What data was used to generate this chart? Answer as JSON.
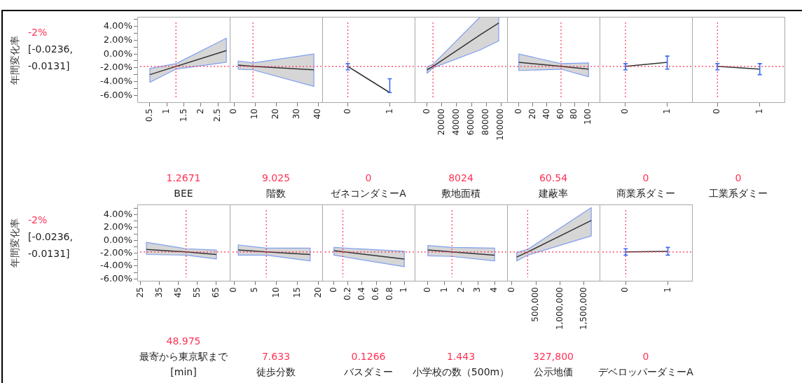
{
  "chart_data": [
    {
      "type": "line",
      "ylabel": "年間変化率",
      "annotations": [
        "-2%",
        "[-0.0236, -0.0131]"
      ],
      "xlabel": "BEE",
      "x": [
        0.5,
        1.2671,
        2.75
      ],
      "series": [
        {
          "color": "#333333",
          "values": [
            -3.0,
            -1.8,
            0.5
          ],
          "lower": [
            -4.1,
            -2.2,
            -1.2
          ],
          "upper": [
            -2.1,
            -1.4,
            2.3
          ]
        }
      ],
      "xlim": [
        0.13,
        2.87
      ],
      "xticks": [
        0.5,
        1,
        1.5,
        2,
        2.5
      ],
      "ylim": [
        -7.1,
        5.4
      ],
      "yticks": [
        {
          "value": 5,
          "label": null
        },
        {
          "value": 4,
          "label": "4.00%"
        },
        {
          "value": 3,
          "label": null
        },
        {
          "value": 2,
          "label": "2.00%"
        },
        {
          "value": 1,
          "label": null
        },
        {
          "value": 0,
          "label": "0.00%"
        },
        {
          "value": -1,
          "label": null
        },
        {
          "value": -2,
          "label": "-2.00%"
        },
        {
          "value": -3,
          "label": null
        },
        {
          "value": -4,
          "label": "-4.00%"
        },
        {
          "value": -5,
          "label": null
        },
        {
          "value": -6,
          "label": "-6.00%"
        }
      ],
      "ref_lines": [
        {
          "axis": "x",
          "value": 1.2671,
          "label": "1.2671",
          "color": "#ff3355",
          "line_style": "dotted"
        },
        {
          "axis": "y",
          "value": -1.8,
          "color": "#ff3355",
          "line_style": "dotted"
        }
      ]
    },
    {
      "type": "line",
      "xlabel": "階数",
      "x": [
        2,
        9.025,
        38
      ],
      "series": [
        {
          "color": "#333333",
          "values": [
            -1.6,
            -1.8,
            -2.3
          ],
          "lower": [
            -2.2,
            -2.3,
            -4.7
          ],
          "upper": [
            -1.0,
            -1.3,
            0.0
          ]
        }
      ],
      "xlim": [
        -2,
        42.3
      ],
      "xticks": [
        0,
        10,
        20,
        30,
        40
      ],
      "ylim": [
        -7.1,
        5.4
      ],
      "tick_labels": "x",
      "ref_lines": [
        {
          "axis": "x",
          "value": 9.025,
          "label": "9.025",
          "color": "#ff3355",
          "line_style": "dotted"
        },
        {
          "axis": "y",
          "value": -1.8,
          "color": "#ff3355",
          "line_style": "dotted"
        }
      ]
    },
    {
      "type": "line",
      "xlabel": "ゼネコンダミーA",
      "x": [
        0,
        1
      ],
      "series": [
        {
          "color": "#333333",
          "values": [
            -1.8,
            -5.6
          ],
          "errors": [
            [
              -2.3,
              -1.4
            ],
            [
              -5.6,
              -3.6
            ]
          ]
        }
      ],
      "xlim": [
        -0.61,
        1.61
      ],
      "xticks": [
        0,
        1
      ],
      "ylim": [
        -7.1,
        5.4
      ],
      "tick_labels": "x",
      "ref_lines": [
        {
          "axis": "x",
          "value": 0,
          "label": "0",
          "color": "#ff3355",
          "line_style": "dotted"
        },
        {
          "axis": "y",
          "value": -1.8,
          "color": "#ff3355",
          "line_style": "dotted"
        }
      ]
    },
    {
      "type": "line",
      "xlabel": "敷地面積",
      "x": [
        0,
        8024,
        72000,
        97000
      ],
      "series": [
        {
          "color": "#333333",
          "values": [
            -2.3,
            -1.8,
            2.8,
            4.5
          ],
          "lower": [
            -2.8,
            -2.0,
            0.6,
            1.9
          ],
          "upper": [
            -1.9,
            -1.5,
            5.4,
            5.4
          ]
        }
      ],
      "xlim": [
        -16800,
        109300
      ],
      "xticks": [
        0,
        20000,
        40000,
        60000,
        80000,
        100000
      ],
      "ylim": [
        -7.1,
        5.4
      ],
      "tick_labels": "x",
      "ref_lines": [
        {
          "axis": "x",
          "value": 8024,
          "label": "8024",
          "color": "#ff3355",
          "line_style": "dotted"
        },
        {
          "axis": "y",
          "value": -1.8,
          "color": "#ff3355",
          "line_style": "dotted"
        }
      ]
    },
    {
      "type": "line",
      "xlabel": "建蔽率",
      "x": [
        0,
        60.54,
        100
      ],
      "series": [
        {
          "color": "#333333",
          "values": [
            -1.2,
            -1.8,
            -2.2
          ],
          "lower": [
            -2.4,
            -2.2,
            -3.3
          ],
          "upper": [
            0.0,
            -1.4,
            -1.3
          ]
        }
      ],
      "xlim": [
        -16.8,
        116.8
      ],
      "xticks": [
        0,
        20,
        40,
        60,
        80,
        100
      ],
      "ylim": [
        -7.1,
        5.4
      ],
      "tick_labels": "x",
      "ref_lines": [
        {
          "axis": "x",
          "value": 60.54,
          "label": "60.54",
          "color": "#ff3355",
          "line_style": "dotted"
        },
        {
          "axis": "y",
          "value": -1.8,
          "color": "#ff3355",
          "line_style": "dotted"
        }
      ]
    },
    {
      "type": "line",
      "xlabel": "商業系ダミー",
      "x": [
        0,
        1
      ],
      "series": [
        {
          "color": "#333333",
          "values": [
            -1.8,
            -1.2
          ],
          "errors": [
            [
              -2.3,
              -1.4
            ],
            [
              -2.2,
              -0.3
            ]
          ]
        }
      ],
      "xlim": [
        -0.62,
        1.61
      ],
      "xticks": [
        0,
        1
      ],
      "ylim": [
        -7.1,
        5.4
      ],
      "tick_labels": "x",
      "ref_lines": [
        {
          "axis": "x",
          "value": 0,
          "label": "0",
          "color": "#ff3355",
          "line_style": "dotted"
        },
        {
          "axis": "y",
          "value": -1.8,
          "color": "#ff3355",
          "line_style": "dotted"
        }
      ]
    },
    {
      "type": "line",
      "xlabel": "工業系ダミー",
      "x": [
        0,
        1
      ],
      "series": [
        {
          "color": "#333333",
          "values": [
            -1.8,
            -2.2
          ],
          "errors": [
            [
              -2.3,
              -1.4
            ],
            [
              -3.0,
              -1.4
            ]
          ]
        }
      ],
      "xlim": [
        -0.6,
        1.6
      ],
      "xticks": [
        0,
        1
      ],
      "ylim": [
        -7.1,
        5.4
      ],
      "tick_labels": "x",
      "ref_lines": [
        {
          "axis": "x",
          "value": 0,
          "label": "0",
          "color": "#ff3355",
          "line_style": "dotted"
        },
        {
          "axis": "y",
          "value": -1.8,
          "color": "#ff3355",
          "line_style": "dotted"
        }
      ]
    },
    {
      "type": "line",
      "ylabel": "年間変化率",
      "annotations": [
        "-2%",
        "[-0.0236, -0.0131]"
      ],
      "xlabel": "最寄から東京駅まで[min]",
      "x": [
        28,
        48.975,
        65
      ],
      "series": [
        {
          "color": "#333333",
          "values": [
            -1.4,
            -1.8,
            -2.2
          ],
          "lower": [
            -2.2,
            -2.3,
            -2.9
          ],
          "upper": [
            -0.3,
            -1.3,
            -1.5
          ]
        }
      ],
      "xlim": [
        23.2,
        72.4
      ],
      "xticks": [
        25,
        35,
        45,
        55,
        65
      ],
      "ylim": [
        -6.4,
        5.6
      ],
      "yticks": [
        {
          "value": 5,
          "label": null
        },
        {
          "value": 4,
          "label": "4.00%"
        },
        {
          "value": 3,
          "label": null
        },
        {
          "value": 2,
          "label": "2.00%"
        },
        {
          "value": 1,
          "label": null
        },
        {
          "value": 0,
          "label": "0.00%"
        },
        {
          "value": -1,
          "label": null
        },
        {
          "value": -2,
          "label": "-2.00%"
        },
        {
          "value": -3,
          "label": null
        },
        {
          "value": -4,
          "label": "-4.00%"
        },
        {
          "value": -5,
          "label": null
        },
        {
          "value": -6,
          "label": "-6.00%"
        }
      ],
      "ref_lines": [
        {
          "axis": "x",
          "value": 48.975,
          "label": "48.975",
          "color": "#ff3355",
          "line_style": "dotted"
        },
        {
          "axis": "y",
          "value": -1.8,
          "color": "#ff3355",
          "line_style": "dotted"
        }
      ]
    },
    {
      "type": "line",
      "xlabel": "徒歩分数",
      "x": [
        1,
        7.633,
        18
      ],
      "series": [
        {
          "color": "#333333",
          "values": [
            -1.5,
            -1.8,
            -2.2
          ],
          "lower": [
            -2.3,
            -2.3,
            -3.2
          ],
          "upper": [
            -0.7,
            -1.2,
            -1.2
          ]
        }
      ],
      "xlim": [
        -1,
        21
      ],
      "xticks": [
        0,
        5,
        10,
        15,
        20
      ],
      "ylim": [
        -6.4,
        5.6
      ],
      "tick_labels": "x",
      "ref_lines": [
        {
          "axis": "x",
          "value": 7.633,
          "label": "7.633",
          "color": "#ff3355",
          "line_style": "dotted"
        },
        {
          "axis": "y",
          "value": -1.8,
          "color": "#ff3355",
          "line_style": "dotted"
        }
      ]
    },
    {
      "type": "line",
      "xlabel": "バスダミー",
      "x": [
        0,
        1
      ],
      "series": [
        {
          "color": "#333333",
          "values": [
            -1.6,
            -2.9
          ],
          "lower": [
            -2.3,
            -4.1
          ],
          "upper": [
            -1.1,
            -1.7
          ]
        }
      ],
      "xlim": [
        -0.167,
        1.157
      ],
      "xticks": [
        0,
        0.2,
        0.4,
        0.6,
        0.8,
        1
      ],
      "ylim": [
        -6.4,
        5.6
      ],
      "tick_labels": "x",
      "ref_lines": [
        {
          "axis": "x",
          "value": 0.1266,
          "label": "0.1266",
          "color": "#ff3355",
          "line_style": "dotted"
        },
        {
          "axis": "y",
          "value": -1.8,
          "color": "#ff3355",
          "line_style": "dotted"
        }
      ]
    },
    {
      "type": "line",
      "xlabel": "小学校の数（500m）",
      "x": [
        0,
        1.443,
        4
      ],
      "series": [
        {
          "color": "#333333",
          "values": [
            -1.5,
            -1.8,
            -2.3
          ],
          "lower": [
            -2.4,
            -2.5,
            -3.2
          ],
          "upper": [
            -0.8,
            -1.1,
            -1.2
          ]
        }
      ],
      "xlim": [
        -0.79,
        4.79
      ],
      "xticks": [
        0,
        1,
        2,
        3,
        4
      ],
      "ylim": [
        -6.4,
        5.6
      ],
      "tick_labels": "x",
      "ref_lines": [
        {
          "axis": "x",
          "value": 1.443,
          "label": "1.443",
          "color": "#ff3355",
          "line_style": "dotted"
        },
        {
          "axis": "y",
          "value": -1.8,
          "color": "#ff3355",
          "line_style": "dotted"
        }
      ]
    },
    {
      "type": "line",
      "xlabel": "公示地価",
      "x": [
        100000,
        327800,
        1650000
      ],
      "series": [
        {
          "color": "#333333",
          "values": [
            -2.6,
            -1.8,
            3.1
          ],
          "lower": [
            -3.2,
            -2.3,
            0.7
          ],
          "upper": [
            -1.9,
            -1.4,
            5.1
          ]
        }
      ],
      "xlim": [
        -100000,
        1837000
      ],
      "xticks": [
        0,
        {
          "value": 500000,
          "label": "500,000"
        },
        {
          "value": 1000000,
          "label": "1,000,000"
        },
        {
          "value": 1500000,
          "label": "1,500,000"
        }
      ],
      "ylim": [
        -6.4,
        5.6
      ],
      "tick_labels": "x",
      "ref_lines": [
        {
          "axis": "x",
          "value": 327800,
          "label": "327,800",
          "color": "#ff3355",
          "line_style": "dotted"
        },
        {
          "axis": "y",
          "value": -1.8,
          "color": "#ff3355",
          "line_style": "dotted"
        }
      ]
    },
    {
      "type": "line",
      "xlabel": "デベロッパーダミーA",
      "x": [
        0,
        1
      ],
      "series": [
        {
          "color": "#333333",
          "values": [
            -1.8,
            -1.7
          ],
          "errors": [
            [
              -2.3,
              -1.3
            ],
            [
              -2.3,
              -1.1
            ]
          ]
        }
      ],
      "xlim": [
        -0.62,
        1.59
      ],
      "xticks": [
        0,
        1
      ],
      "ylim": [
        -6.4,
        5.6
      ],
      "tick_labels": "x",
      "ref_lines": [
        {
          "axis": "x",
          "value": 0,
          "label": "0",
          "color": "#ff3355",
          "line_style": "dotted"
        },
        {
          "axis": "y",
          "value": -1.8,
          "color": "#ff3355",
          "line_style": "dotted"
        }
      ]
    }
  ]
}
